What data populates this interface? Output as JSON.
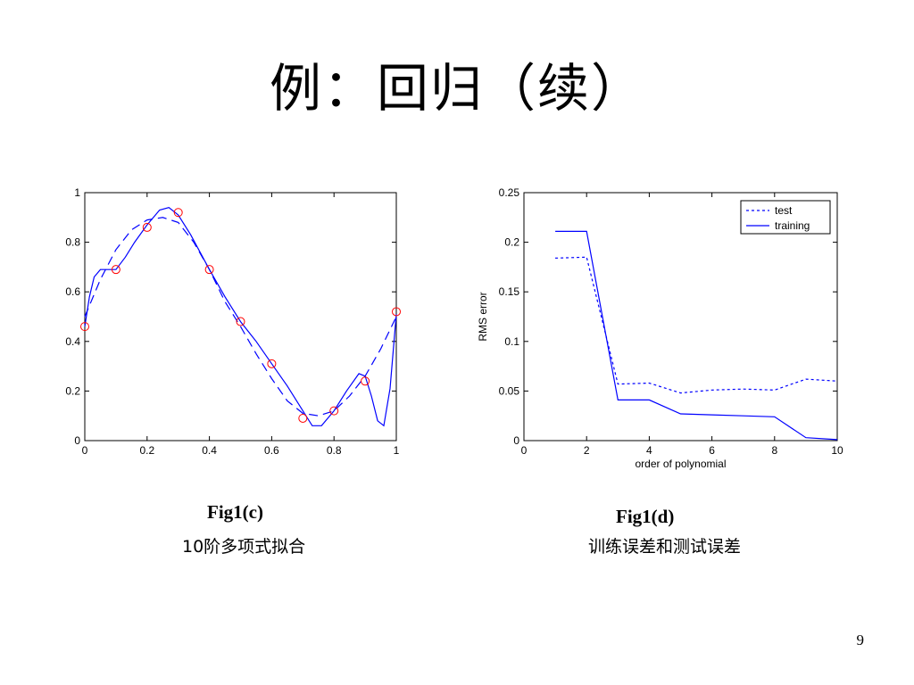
{
  "slide": {
    "title": "例：回归（续）",
    "page_number": "9"
  },
  "figures": [
    {
      "label": "Fig1(c)",
      "caption": "10阶多项式拟合"
    },
    {
      "label": "Fig1(d)",
      "caption": "训练误差和测试误差"
    }
  ],
  "colors": {
    "curve": "#0000ff",
    "points": "#ff0000",
    "axes": "#000000"
  },
  "chart_data": [
    {
      "type": "line",
      "xlim": [
        0,
        1
      ],
      "ylim": [
        0,
        1
      ],
      "xticks": [
        0,
        0.2,
        0.4,
        0.6,
        0.8,
        1
      ],
      "yticks": [
        0,
        0.2,
        0.4,
        0.6,
        0.8,
        1
      ],
      "xtick_labels": [
        "0",
        "0.2",
        "0.4",
        "0.6",
        "0.8",
        "1"
      ],
      "ytick_labels": [
        "0",
        "0.2",
        "0.4",
        "0.6",
        "0.8",
        "1"
      ],
      "xlabel": "",
      "ylabel": "",
      "points": {
        "x": [
          0,
          0.1,
          0.2,
          0.3,
          0.4,
          0.5,
          0.6,
          0.7,
          0.8,
          0.9,
          1.0
        ],
        "y": [
          0.46,
          0.69,
          0.86,
          0.92,
          0.69,
          0.48,
          0.31,
          0.09,
          0.12,
          0.24,
          0.52
        ]
      },
      "series": [
        {
          "style": "dashed",
          "x": [
            0,
            0.05,
            0.1,
            0.15,
            0.2,
            0.25,
            0.3,
            0.35,
            0.4,
            0.45,
            0.5,
            0.55,
            0.6,
            0.65,
            0.7,
            0.75,
            0.8,
            0.85,
            0.9,
            0.95,
            1.0
          ],
          "y": [
            0.5,
            0.65,
            0.77,
            0.85,
            0.89,
            0.9,
            0.88,
            0.8,
            0.69,
            0.56,
            0.46,
            0.35,
            0.25,
            0.16,
            0.11,
            0.1,
            0.12,
            0.18,
            0.26,
            0.37,
            0.5
          ]
        },
        {
          "style": "solid",
          "x": [
            0,
            0.015,
            0.03,
            0.05,
            0.07,
            0.1,
            0.13,
            0.16,
            0.2,
            0.24,
            0.27,
            0.3,
            0.34,
            0.4,
            0.45,
            0.5,
            0.55,
            0.6,
            0.65,
            0.7,
            0.73,
            0.76,
            0.8,
            0.84,
            0.88,
            0.9,
            0.92,
            0.94,
            0.96,
            0.98,
            1.0
          ],
          "y": [
            0.46,
            0.58,
            0.66,
            0.69,
            0.69,
            0.69,
            0.74,
            0.8,
            0.87,
            0.93,
            0.94,
            0.91,
            0.83,
            0.69,
            0.58,
            0.48,
            0.4,
            0.31,
            0.22,
            0.12,
            0.06,
            0.06,
            0.12,
            0.2,
            0.27,
            0.26,
            0.18,
            0.08,
            0.06,
            0.21,
            0.51
          ]
        }
      ]
    },
    {
      "type": "line",
      "xlim": [
        0,
        10
      ],
      "ylim": [
        0,
        0.25
      ],
      "xticks": [
        0,
        2,
        4,
        6,
        8,
        10
      ],
      "yticks": [
        0,
        0.05,
        0.1,
        0.15,
        0.2,
        0.25
      ],
      "xtick_labels": [
        "0",
        "2",
        "4",
        "6",
        "8",
        "10"
      ],
      "ytick_labels": [
        "0",
        "0.05",
        "0.1",
        "0.15",
        "0.2",
        "0.25"
      ],
      "xlabel": "order of polynomial",
      "ylabel": "RMS error",
      "legend_position": "top-right",
      "series": [
        {
          "name": "test",
          "style": "dotted",
          "x": [
            1,
            2,
            3,
            4,
            5,
            6,
            7,
            8,
            9,
            10
          ],
          "y": [
            0.184,
            0.185,
            0.057,
            0.058,
            0.048,
            0.051,
            0.052,
            0.051,
            0.062,
            0.06
          ]
        },
        {
          "name": "training",
          "style": "solid",
          "x": [
            1,
            2,
            3,
            4,
            5,
            6,
            7,
            8,
            9,
            10
          ],
          "y": [
            0.211,
            0.211,
            0.041,
            0.041,
            0.027,
            0.026,
            0.025,
            0.024,
            0.003,
            0.001
          ]
        }
      ]
    }
  ]
}
